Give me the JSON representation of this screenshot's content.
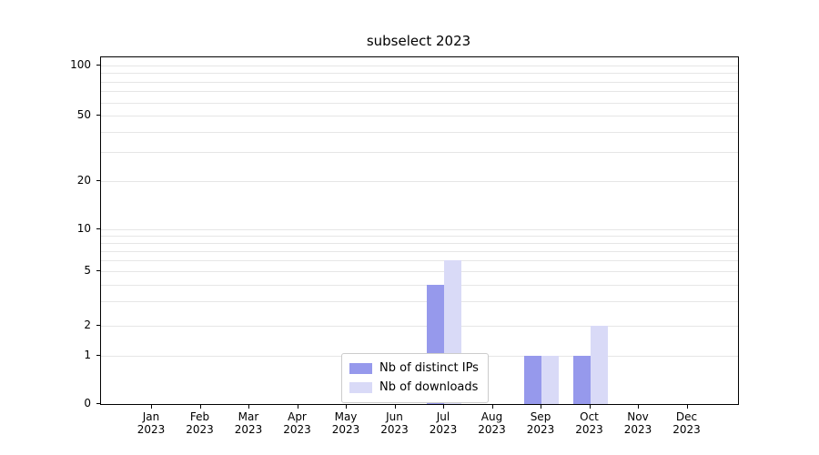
{
  "title": "subselect 2023",
  "chart_data": {
    "type": "bar",
    "title": "subselect 2023",
    "categories": [
      "Jan",
      "Feb",
      "Mar",
      "Apr",
      "May",
      "Jun",
      "Jul",
      "Aug",
      "Sep",
      "Oct",
      "Nov",
      "Dec"
    ],
    "category_year": "2023",
    "series": [
      {
        "name": "Nb of distinct IPs",
        "color": "#9699ec",
        "values": [
          0,
          0,
          0,
          0,
          0,
          0,
          4,
          0,
          1,
          1,
          0,
          0
        ]
      },
      {
        "name": "Nb of downloads",
        "color": "#d9daf7",
        "values": [
          0,
          0,
          0,
          0,
          0,
          0,
          6,
          0,
          1,
          2,
          0,
          0
        ]
      }
    ],
    "yticks": [
      0,
      1,
      2,
      5,
      10,
      20,
      50,
      100
    ],
    "y_minor_gridlines": [
      3,
      4,
      6,
      7,
      8,
      9,
      30,
      40,
      60,
      70,
      80,
      90
    ],
    "ylim": [
      0,
      110
    ],
    "grid": "horizontal",
    "legend_position": "lower center",
    "xlabel": "",
    "ylabel": ""
  }
}
